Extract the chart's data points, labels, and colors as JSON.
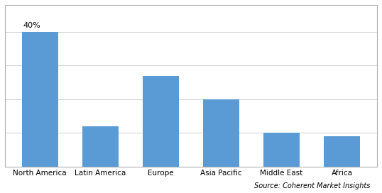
{
  "categories": [
    "North America",
    "Latin America",
    "Europe",
    "Asia Pacific",
    "Middle East",
    "Africa"
  ],
  "values": [
    40,
    12,
    27,
    20,
    10,
    9
  ],
  "bar_color": "#5b9bd5",
  "annotation_label": "40%",
  "annotation_index": 0,
  "ylim": [
    0,
    48
  ],
  "ylabel": "",
  "xlabel": "",
  "source_text": "Source: Coherent Market Insights",
  "background_color": "#ffffff",
  "grid_color": "#d0d0d0",
  "tick_label_fontsize": 7.5,
  "annotation_fontsize": 8,
  "source_fontsize": 7,
  "bar_width": 0.6,
  "figsize": [
    5.38,
    2.72
  ],
  "dpi": 100
}
